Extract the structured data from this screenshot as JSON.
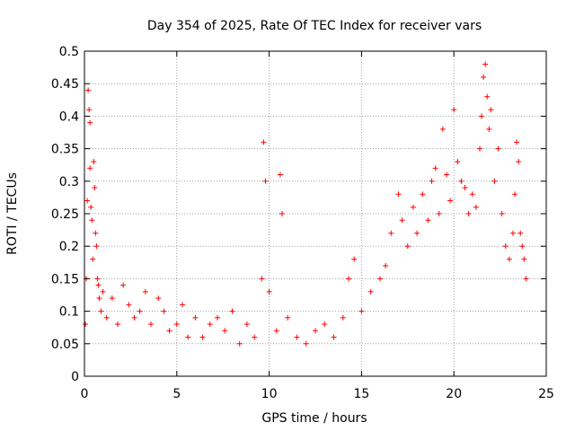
{
  "chart_data": {
    "type": "scatter",
    "title": "Day 354 of 2025, Rate Of TEC Index for receiver vars",
    "xlabel": "GPS time / hours",
    "ylabel": "ROTI / TECUs",
    "xlim": [
      0,
      25
    ],
    "ylim": [
      0,
      0.5
    ],
    "xticks": [
      0,
      5,
      10,
      15,
      20,
      25
    ],
    "xtick_labels": [
      "0",
      "5",
      "10",
      "15",
      "20",
      "25"
    ],
    "yticks": [
      0,
      0.05,
      0.1,
      0.15,
      0.2,
      0.25,
      0.3,
      0.35,
      0.4,
      0.45,
      0.5
    ],
    "ytick_labels": [
      "0",
      "0.05",
      "0.1",
      "0.15",
      "0.2",
      "0.25",
      "0.3",
      "0.35",
      "0.4",
      "0.45",
      "0.5"
    ],
    "grid": true,
    "marker": "+",
    "marker_color": "#ff0000",
    "series": [
      {
        "name": "ROTI",
        "x": [
          0.05,
          0.1,
          0.15,
          0.2,
          0.25,
          0.3,
          0.3,
          0.35,
          0.4,
          0.45,
          0.5,
          0.55,
          0.6,
          0.65,
          0.7,
          0.75,
          0.8,
          0.9,
          1.0,
          1.2,
          1.5,
          1.8,
          2.1,
          2.4,
          2.7,
          3.0,
          3.3,
          3.6,
          4.0,
          4.3,
          4.6,
          5.0,
          5.3,
          5.6,
          6.0,
          6.4,
          6.8,
          7.2,
          7.6,
          8.0,
          8.4,
          8.8,
          9.2,
          9.6,
          9.7,
          9.8,
          10.0,
          10.4,
          10.6,
          10.7,
          11.0,
          11.5,
          12.0,
          12.5,
          13.0,
          13.5,
          14.0,
          14.3,
          14.6,
          15.0,
          15.5,
          16.0,
          16.3,
          16.6,
          17.0,
          17.2,
          17.5,
          17.8,
          18.0,
          18.3,
          18.6,
          18.8,
          19.0,
          19.2,
          19.4,
          19.6,
          19.8,
          20.0,
          20.2,
          20.4,
          20.6,
          20.8,
          21.0,
          21.2,
          21.4,
          21.5,
          21.6,
          21.7,
          21.8,
          21.9,
          22.0,
          22.2,
          22.4,
          22.6,
          22.8,
          23.0,
          23.2,
          23.3,
          23.4,
          23.5,
          23.6,
          23.7,
          23.8,
          23.9
        ],
        "y": [
          0.08,
          0.15,
          0.27,
          0.44,
          0.41,
          0.39,
          0.32,
          0.26,
          0.24,
          0.18,
          0.33,
          0.29,
          0.22,
          0.2,
          0.15,
          0.14,
          0.12,
          0.1,
          0.13,
          0.09,
          0.12,
          0.08,
          0.14,
          0.11,
          0.09,
          0.1,
          0.13,
          0.08,
          0.12,
          0.1,
          0.07,
          0.08,
          0.11,
          0.06,
          0.09,
          0.06,
          0.08,
          0.09,
          0.07,
          0.1,
          0.05,
          0.08,
          0.06,
          0.15,
          0.36,
          0.3,
          0.13,
          0.07,
          0.31,
          0.25,
          0.09,
          0.06,
          0.05,
          0.07,
          0.08,
          0.06,
          0.09,
          0.15,
          0.18,
          0.1,
          0.13,
          0.15,
          0.17,
          0.22,
          0.28,
          0.24,
          0.2,
          0.26,
          0.22,
          0.28,
          0.24,
          0.3,
          0.32,
          0.25,
          0.38,
          0.31,
          0.27,
          0.41,
          0.33,
          0.3,
          0.29,
          0.25,
          0.28,
          0.26,
          0.35,
          0.4,
          0.46,
          0.48,
          0.43,
          0.38,
          0.41,
          0.3,
          0.35,
          0.25,
          0.2,
          0.18,
          0.22,
          0.28,
          0.36,
          0.33,
          0.22,
          0.2,
          0.18,
          0.15
        ]
      }
    ]
  }
}
